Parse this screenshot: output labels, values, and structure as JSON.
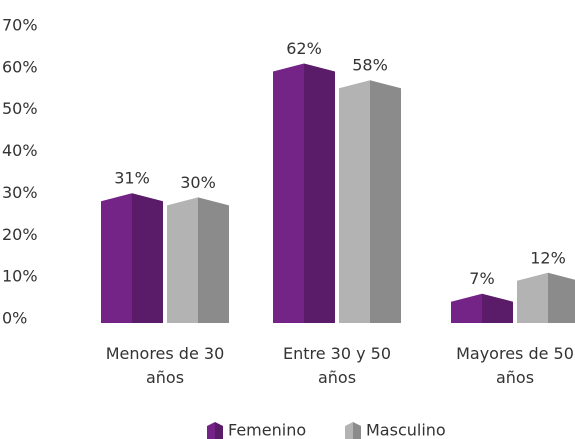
{
  "chart_data": {
    "type": "bar",
    "categories": [
      "Menores de 30 años",
      "Entre 30 y 50 años",
      "Mayores de 50 años"
    ],
    "series": [
      {
        "name": "Femenino",
        "color": "#742486",
        "values": [
          31,
          62,
          7
        ],
        "value_labels": [
          "31%",
          "62%",
          "7%"
        ]
      },
      {
        "name": "Masculino",
        "color": "#b3b3b3",
        "values": [
          30,
          58,
          12
        ],
        "value_labels": [
          "30%",
          "58%",
          "12%"
        ]
      }
    ],
    "ylim": [
      0,
      70
    ],
    "yticks": [
      {
        "value": 0,
        "label": "0%"
      },
      {
        "value": 10,
        "label": "10%"
      },
      {
        "value": 20,
        "label": "20%"
      },
      {
        "value": 30,
        "label": "30%"
      },
      {
        "value": 40,
        "label": "40%"
      },
      {
        "value": 50,
        "label": "50%"
      },
      {
        "value": 60,
        "label": "60%"
      },
      {
        "value": 70,
        "label": "70%"
      }
    ],
    "grid": true,
    "legend": "bottom"
  }
}
